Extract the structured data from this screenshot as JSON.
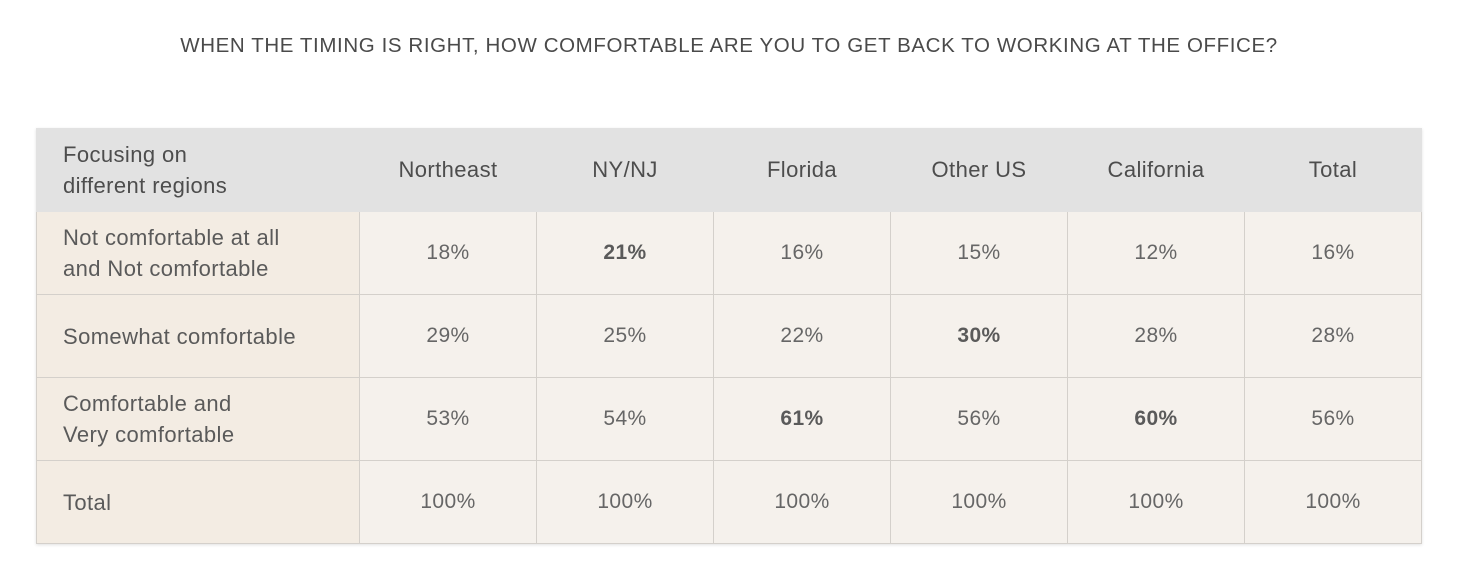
{
  "title": "WHEN THE TIMING IS RIGHT, HOW COMFORTABLE ARE YOU TO GET BACK TO WORKING AT THE OFFICE?",
  "table": {
    "header_label": [
      "Focusing on",
      "different regions"
    ],
    "columns": [
      "Northeast",
      "NY/NJ",
      "Florida",
      "Other US",
      "California",
      "Total"
    ],
    "rows": [
      {
        "label": [
          "Not comfortable at all",
          "and Not comfortable"
        ],
        "values": [
          "18%",
          "21%",
          "16%",
          "15%",
          "12%",
          "16%"
        ],
        "bold": [
          false,
          true,
          false,
          false,
          false,
          false
        ]
      },
      {
        "label": [
          "Somewhat comfortable"
        ],
        "values": [
          "29%",
          "25%",
          "22%",
          "30%",
          "28%",
          "28%"
        ],
        "bold": [
          false,
          false,
          false,
          true,
          false,
          false
        ]
      },
      {
        "label": [
          "Comfortable and",
          "Very comfortable"
        ],
        "values": [
          "53%",
          "54%",
          "61%",
          "56%",
          "60%",
          "56%"
        ],
        "bold": [
          false,
          false,
          true,
          false,
          true,
          false
        ]
      },
      {
        "label": [
          "Total"
        ],
        "values": [
          "100%",
          "100%",
          "100%",
          "100%",
          "100%",
          "100%"
        ],
        "bold": [
          false,
          false,
          false,
          false,
          false,
          false
        ]
      }
    ]
  },
  "chart_data": {
    "type": "table",
    "title": "WHEN THE TIMING IS RIGHT, HOW COMFORTABLE ARE YOU TO GET BACK TO WORKING AT THE OFFICE?",
    "row_header": "Focusing on different regions",
    "categories": [
      "Northeast",
      "NY/NJ",
      "Florida",
      "Other US",
      "California",
      "Total"
    ],
    "series": [
      {
        "name": "Not comfortable at all and Not comfortable",
        "values": [
          18,
          21,
          16,
          15,
          12,
          16
        ]
      },
      {
        "name": "Somewhat comfortable",
        "values": [
          29,
          25,
          22,
          30,
          28,
          28
        ]
      },
      {
        "name": "Comfortable and Very comfortable",
        "values": [
          53,
          54,
          61,
          56,
          60,
          56
        ]
      },
      {
        "name": "Total",
        "values": [
          100,
          100,
          100,
          100,
          100,
          100
        ]
      }
    ],
    "unit": "%"
  },
  "colors": {
    "header_bg": "#e2e2e2",
    "cell_bg": "#f5f1ec",
    "label_bg": "#f3ece3",
    "border": "#d4d0cb",
    "text": "#555555"
  }
}
